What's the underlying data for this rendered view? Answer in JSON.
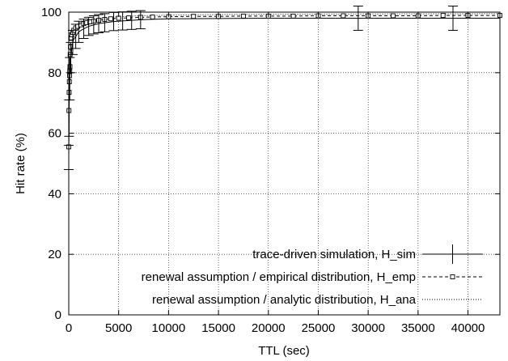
{
  "chart_data": {
    "type": "line",
    "title": "",
    "xlabel": "TTL (sec)",
    "ylabel": "Hit rate (%)",
    "xlim": [
      0,
      43200
    ],
    "ylim": [
      0,
      100
    ],
    "xticks": [
      0,
      5000,
      10000,
      15000,
      20000,
      25000,
      30000,
      35000,
      40000
    ],
    "yticks": [
      0,
      20,
      40,
      60,
      80,
      100
    ],
    "grid": true,
    "legend_position": "bottom-right",
    "series": [
      {
        "name": "trace-driven simulation, H_sim",
        "line_style": "solid",
        "marker": "plus",
        "points": [
          [
            0,
            52
          ],
          [
            30,
            65
          ],
          [
            60,
            72
          ],
          [
            100,
            78
          ],
          [
            150,
            82
          ],
          [
            200,
            85
          ],
          [
            300,
            88
          ],
          [
            400,
            90
          ],
          [
            500,
            91
          ],
          [
            700,
            92
          ],
          [
            1000,
            93.5
          ],
          [
            1500,
            94.5
          ],
          [
            2000,
            95.3
          ],
          [
            2500,
            95.8
          ],
          [
            3000,
            96.2
          ],
          [
            3600,
            96.5
          ],
          [
            4500,
            96.9
          ],
          [
            5400,
            97.1
          ],
          [
            6300,
            97.3
          ],
          [
            7200,
            97.5
          ],
          [
            8000,
            97.6
          ],
          [
            10000,
            97.8
          ],
          [
            15000,
            97.9
          ],
          [
            20000,
            98
          ],
          [
            25000,
            98
          ],
          [
            30000,
            98
          ],
          [
            35000,
            98
          ],
          [
            43200,
            98
          ]
        ],
        "error_bars": [
          [
            0,
            4
          ],
          [
            30,
            6
          ],
          [
            100,
            7
          ],
          [
            200,
            5
          ],
          [
            400,
            4
          ],
          [
            700,
            4
          ],
          [
            1000,
            3.5
          ],
          [
            1500,
            3.2
          ],
          [
            2000,
            3
          ],
          [
            2500,
            3
          ],
          [
            3000,
            3
          ],
          [
            3600,
            3
          ],
          [
            4500,
            3
          ],
          [
            5400,
            3
          ],
          [
            6300,
            3
          ],
          [
            7200,
            3
          ],
          [
            29000,
            4
          ],
          [
            38500,
            4
          ]
        ]
      },
      {
        "name": "renewal assumption / empirical distribution, H_emp",
        "line_style": "dashed",
        "marker": "square",
        "points": [
          [
            0,
            55.5
          ],
          [
            20,
            67.5
          ],
          [
            40,
            73.5
          ],
          [
            60,
            77
          ],
          [
            80,
            79
          ],
          [
            100,
            80.5
          ],
          [
            120,
            82
          ],
          [
            140,
            86
          ],
          [
            170,
            88.5
          ],
          [
            200,
            90
          ],
          [
            250,
            91.5
          ],
          [
            300,
            92.5
          ],
          [
            400,
            93.3
          ],
          [
            500,
            94
          ],
          [
            700,
            94.8
          ],
          [
            900,
            95.3
          ],
          [
            1200,
            95.8
          ],
          [
            1500,
            96.2
          ],
          [
            1800,
            96.5
          ],
          [
            2100,
            96.8
          ],
          [
            2500,
            97
          ],
          [
            3000,
            97.3
          ],
          [
            3600,
            97.6
          ],
          [
            4200,
            97.8
          ],
          [
            5000,
            98
          ],
          [
            6000,
            98.1
          ],
          [
            7200,
            98.3
          ],
          [
            8400,
            98.4
          ],
          [
            10000,
            98.5
          ],
          [
            12500,
            98.6
          ],
          [
            15000,
            98.6
          ],
          [
            17500,
            98.7
          ],
          [
            20000,
            98.7
          ],
          [
            22500,
            98.7
          ],
          [
            25000,
            98.8
          ],
          [
            27500,
            98.8
          ],
          [
            30000,
            98.8
          ],
          [
            32500,
            98.8
          ],
          [
            35000,
            98.8
          ],
          [
            37500,
            98.9
          ],
          [
            40000,
            98.9
          ],
          [
            43200,
            98.9
          ]
        ]
      },
      {
        "name": "renewal assumption / analytic distribution, H_ana",
        "line_style": "dotted",
        "marker": "none",
        "points": [
          [
            0,
            60
          ],
          [
            100,
            85
          ],
          [
            300,
            91
          ],
          [
            600,
            94
          ],
          [
            1000,
            95.8
          ],
          [
            2000,
            97.3
          ],
          [
            4000,
            98.3
          ],
          [
            7000,
            98.8
          ],
          [
            10000,
            99
          ],
          [
            15000,
            99.2
          ],
          [
            20000,
            99.3
          ],
          [
            30000,
            99.4
          ],
          [
            43200,
            99.5
          ]
        ]
      }
    ]
  }
}
